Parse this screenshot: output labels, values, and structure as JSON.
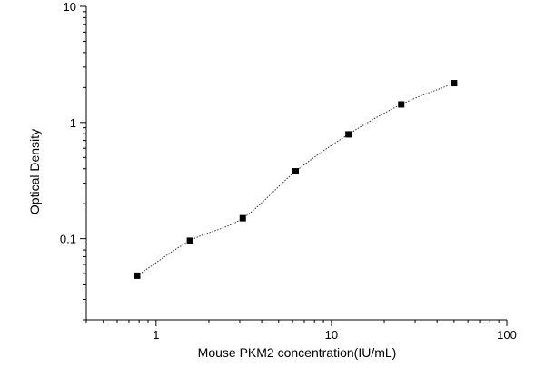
{
  "chart_data": {
    "type": "scatter",
    "title": "",
    "xlabel": "Mouse PKM2 concentration(IU/mL)",
    "ylabel": "Optical Density",
    "x_scale": "log",
    "y_scale": "log",
    "xlim": [
      0.4,
      100
    ],
    "ylim": [
      0.02,
      10
    ],
    "x_ticks": [
      {
        "value": 1,
        "label": "1"
      },
      {
        "value": 10,
        "label": "10"
      },
      {
        "value": 100,
        "label": "100"
      }
    ],
    "y_ticks": [
      {
        "value": 0.1,
        "label": "0.1"
      },
      {
        "value": 1,
        "label": "1"
      },
      {
        "value": 10,
        "label": "10"
      }
    ],
    "grid": false,
    "legend": "none",
    "series": [
      {
        "points": [
          {
            "x": 0.78,
            "y": 0.048
          },
          {
            "x": 1.56,
            "y": 0.096
          },
          {
            "x": 3.12,
            "y": 0.15
          },
          {
            "x": 6.25,
            "y": 0.38
          },
          {
            "x": 12.5,
            "y": 0.79
          },
          {
            "x": 25,
            "y": 1.43
          },
          {
            "x": 50,
            "y": 2.18
          }
        ],
        "fit_curve": "dotted"
      }
    ],
    "colors": {
      "marker": "#000000",
      "axis": "#000000",
      "curve": "#333333"
    }
  }
}
